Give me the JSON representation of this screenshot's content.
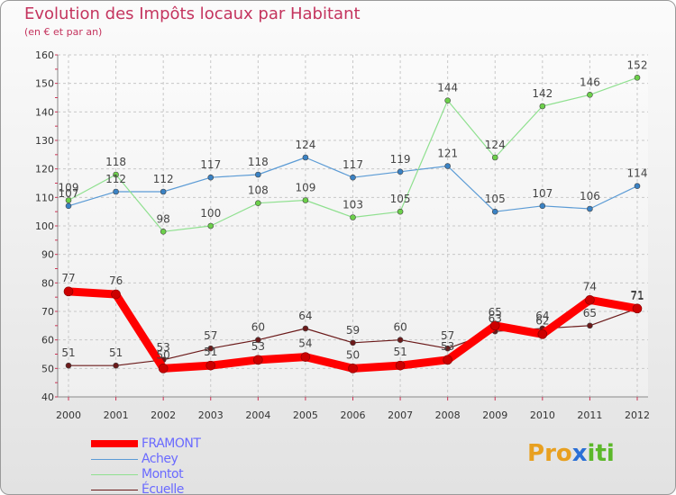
{
  "chart_data": {
    "type": "line",
    "title": "Evolution des Impôts locaux par Habitant",
    "subtitle": "(en € et par an)",
    "categories": [
      "2000",
      "2001",
      "2002",
      "2003",
      "2004",
      "2005",
      "2006",
      "2007",
      "2008",
      "2009",
      "2010",
      "2011",
      "2012"
    ],
    "ylim": [
      40,
      160
    ],
    "yticks": [
      40,
      50,
      60,
      70,
      80,
      90,
      100,
      110,
      120,
      130,
      140,
      150,
      160
    ],
    "grid": true,
    "series": [
      {
        "name": "FRAMONT",
        "color": "#ff0000",
        "marker_color": "#cc0000",
        "values": [
          77,
          76,
          50,
          51,
          53,
          54,
          50,
          51,
          53,
          65,
          62,
          74,
          71
        ],
        "bold": true
      },
      {
        "name": "Achey",
        "color": "#5b9bd5",
        "marker_color": "#3a82c4",
        "values": [
          107,
          112,
          112,
          117,
          118,
          124,
          117,
          119,
          121,
          105,
          107,
          106,
          114
        ]
      },
      {
        "name": "Montot",
        "color": "#8fe08f",
        "marker_color": "#6cd04a",
        "values": [
          109,
          118,
          98,
          100,
          108,
          109,
          103,
          105,
          144,
          124,
          142,
          146,
          152
        ]
      },
      {
        "name": "Écuelle",
        "color": "#6b1a1a",
        "marker_color": "#6b1a1a",
        "values": [
          51,
          51,
          53,
          57,
          60,
          64,
          59,
          60,
          57,
          63,
          64,
          65,
          71
        ]
      }
    ]
  },
  "legend": {
    "items": [
      "FRAMONT",
      "Achey",
      "Montot",
      "Écuelle"
    ]
  },
  "logo": {
    "text": "Proxiti",
    "letters": [
      "P",
      "r",
      "o",
      "x",
      "i",
      "t",
      "i"
    ],
    "colors": [
      "#e8a020",
      "#e8a020",
      "#e8a020",
      "#2a6fd6",
      "#5cb82a",
      "#5cb82a",
      "#5cb82a"
    ]
  }
}
